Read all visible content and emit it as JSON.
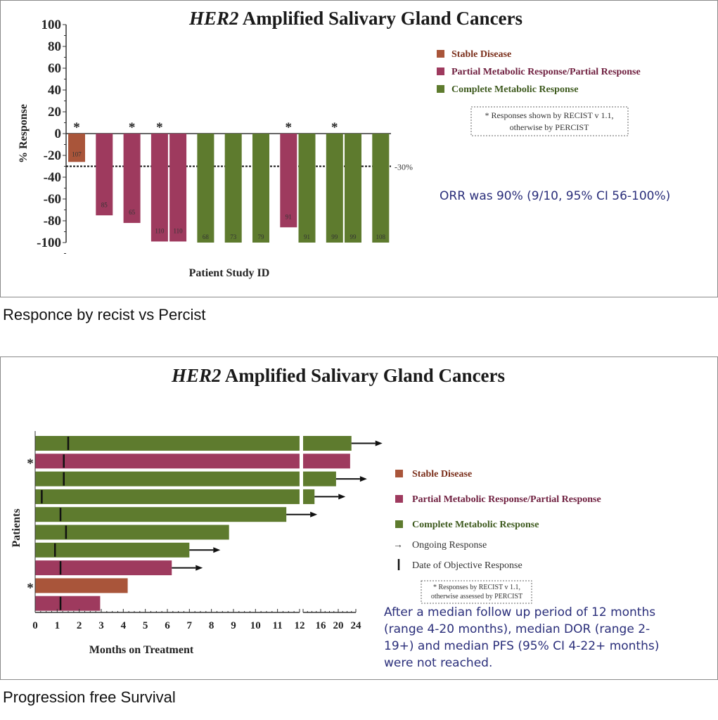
{
  "colors": {
    "stable": "#a9553a",
    "partial": "#9e3a5e",
    "complete": "#5e7b2e",
    "stable_text": "#7a2e1a",
    "partial_text": "#6e1e3e",
    "complete_text": "#3e5a1e",
    "blue_text": "#2a2e7a"
  },
  "captions": {
    "top": "Responce by recist vs Percist",
    "bottom": "Progression free Survival"
  },
  "chart_data": [
    {
      "type": "bar",
      "title_italic": "HER2",
      "title_rest": " Amplified Salivary Gland Cancers",
      "xlabel": "Patient Study ID",
      "ylabel": "% Response",
      "ylim": [
        -100,
        100
      ],
      "yticks": [
        "100",
        "80",
        "60",
        "40",
        "20",
        "0",
        "-20",
        "-40",
        "-60",
        "-80",
        "-100"
      ],
      "threshold": {
        "value": -30,
        "label": "-30%"
      },
      "categories": [
        "107",
        "85",
        "65",
        "110",
        "110",
        "68",
        "73",
        "79",
        "91",
        "91",
        "99",
        "99",
        "108"
      ],
      "values": [
        -26,
        -75,
        -82,
        -99,
        -99,
        -100,
        -100,
        -100,
        -86,
        -100,
        -100,
        -100,
        -100
      ],
      "response": [
        "SD",
        "PR",
        "PR",
        "PR",
        "PR",
        "CR",
        "CR",
        "CR",
        "PR",
        "CR",
        "CR",
        "CR",
        "CR"
      ],
      "recist_asterisk": [
        true,
        false,
        true,
        true,
        false,
        false,
        false,
        false,
        true,
        false,
        true,
        false,
        false
      ],
      "legend": [
        {
          "key": "SD",
          "label": "Stable Disease"
        },
        {
          "key": "PR",
          "label": "Partial Metabolic Response/Partial Response"
        },
        {
          "key": "CR",
          "label": "Complete Metabolic Response"
        }
      ],
      "note_lines": [
        "* Responses shown by RECIST v 1.1,",
        "otherwise by PERCIST"
      ],
      "annotation": "ORR was 90% (9/10, 95% CI 56-100%)"
    },
    {
      "type": "bar",
      "orientation": "horizontal-swimmer",
      "title_italic": "HER2",
      "title_rest": " Amplified Salivary Gland Cancers",
      "xlabel": "Months on Treatment",
      "ylabel": "Patients",
      "xticks": [
        "0",
        "1",
        "2",
        "3",
        "4",
        "5",
        "6",
        "7",
        "8",
        "9",
        "10",
        "11",
        "12",
        "12",
        "16",
        "20",
        "24"
      ],
      "axis_break_at": 12,
      "xlim": [
        0,
        24
      ],
      "patients": [
        {
          "months": 23.0,
          "response": "CR",
          "objective_response": 1.5,
          "ongoing": true,
          "asterisk": false
        },
        {
          "months": 22.7,
          "response": "PR",
          "objective_response": 1.3,
          "ongoing": false,
          "asterisk": true
        },
        {
          "months": 19.5,
          "response": "CR",
          "objective_response": 1.3,
          "ongoing": true,
          "asterisk": false
        },
        {
          "months": 14.6,
          "response": "CR",
          "objective_response": 0.3,
          "ongoing": true,
          "asterisk": false
        },
        {
          "months": 11.4,
          "response": "CR",
          "objective_response": 1.15,
          "ongoing": true,
          "asterisk": false
        },
        {
          "months": 8.8,
          "response": "CR",
          "objective_response": 1.4,
          "ongoing": false,
          "asterisk": false
        },
        {
          "months": 7.0,
          "response": "CR",
          "objective_response": 0.9,
          "ongoing": true,
          "asterisk": false
        },
        {
          "months": 6.2,
          "response": "PR",
          "objective_response": 1.15,
          "ongoing": true,
          "asterisk": false
        },
        {
          "months": 4.2,
          "response": "SD",
          "objective_response": null,
          "ongoing": false,
          "asterisk": true
        },
        {
          "months": 2.95,
          "response": "PR",
          "objective_response": 1.15,
          "ongoing": false,
          "asterisk": false
        }
      ],
      "legend": [
        {
          "key": "SD",
          "label": "Stable Disease"
        },
        {
          "key": "PR",
          "label": "Partial Metabolic Response/Partial Response"
        },
        {
          "key": "CR",
          "label": "Complete Metabolic Response"
        },
        {
          "key": "arrow",
          "label": "Ongoing Response"
        },
        {
          "key": "mark",
          "label": "Date of Objective Response"
        }
      ],
      "note_lines": [
        "* Responses by RECIST v 1.1,",
        "otherwise assessed by PERCIST"
      ],
      "annotation_lines": [
        "After a median follow up period of 12 months",
        "(range 4-20 months), median DOR (range 2-",
        "19+) and median PFS (95% CI 4-22+ months)",
        "were not reached."
      ]
    }
  ]
}
